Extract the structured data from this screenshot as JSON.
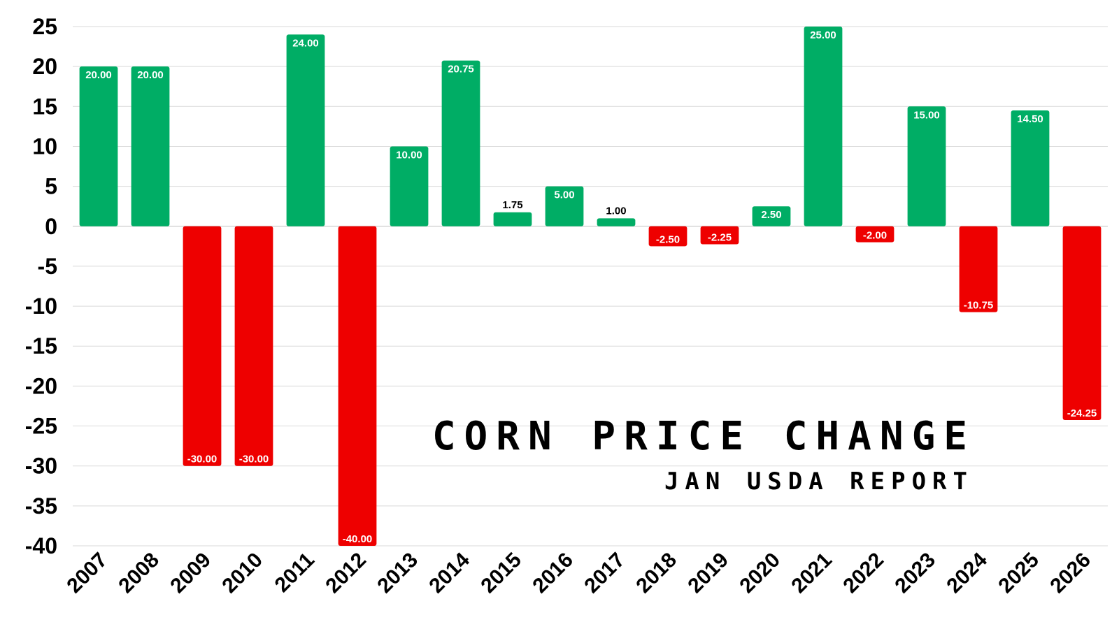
{
  "chart_data": {
    "type": "bar",
    "title": "CORN PRICE CHANGE",
    "subtitle": "JAN USDA REPORT",
    "xlabel": "",
    "ylabel": "",
    "ylim": [
      -40,
      25
    ],
    "ytick_step": 5,
    "grid": true,
    "categories": [
      "2007",
      "2008",
      "2009",
      "2010",
      "2011",
      "2012",
      "2013",
      "2014",
      "2015",
      "2016",
      "2017",
      "2018",
      "2019",
      "2020",
      "2021",
      "2022",
      "2023",
      "2024",
      "2025",
      "2026"
    ],
    "values": [
      20.0,
      20.0,
      -30.0,
      -30.0,
      24.0,
      -40.0,
      10.0,
      20.75,
      1.75,
      5.0,
      1.0,
      -2.5,
      -2.25,
      2.5,
      25.0,
      -2.0,
      15.0,
      -10.75,
      14.5,
      -24.25
    ],
    "value_labels": [
      "20.00",
      "20.00",
      "-30.00",
      "-30.00",
      "24.00",
      "-40.00",
      "10.00",
      "20.75",
      "1.75",
      "5.00",
      "1.00",
      "-2.50",
      "-2.25",
      "2.50",
      "25.00",
      "-2.00",
      "15.00",
      "-10.75",
      "14.50",
      "-24.25"
    ],
    "colors": {
      "positive": "#00ad65",
      "negative": "#ee0000",
      "label_inside": "#ffffff",
      "label_outside": "#000000"
    }
  }
}
